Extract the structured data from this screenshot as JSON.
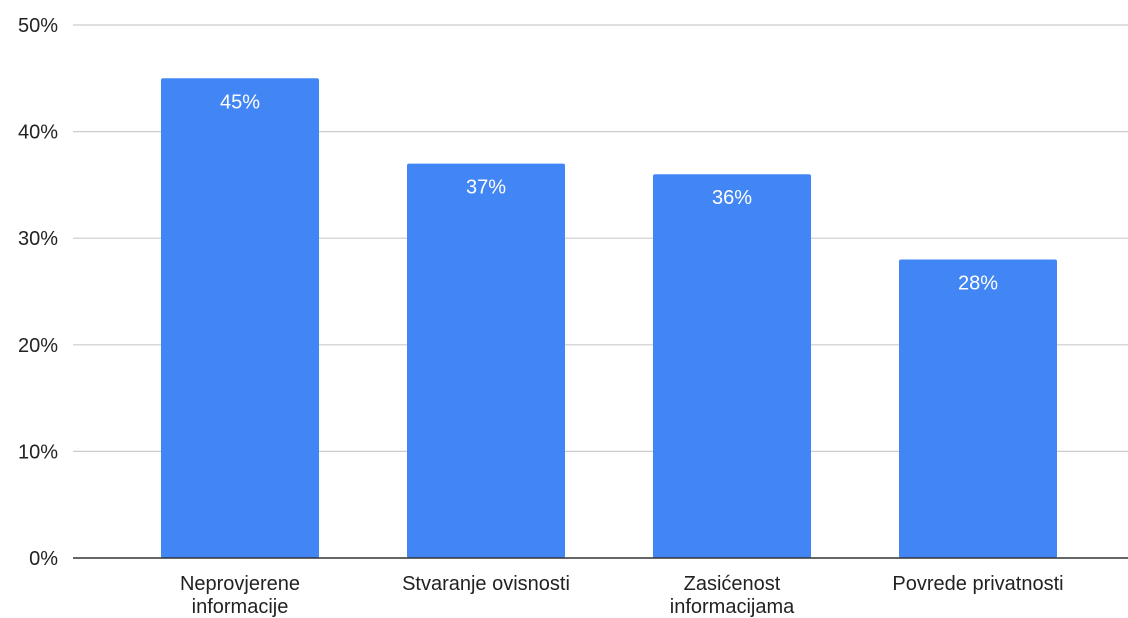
{
  "chart_data": {
    "type": "bar",
    "categories": [
      [
        "Neprovjerene",
        "informacije"
      ],
      [
        "Stvaranje ovisnosti"
      ],
      [
        "Zasićenost",
        "informacijama"
      ],
      [
        "Povrede privatnosti"
      ]
    ],
    "values": [
      45,
      37,
      36,
      28
    ],
    "data_labels": [
      "45%",
      "37%",
      "36%",
      "28%"
    ],
    "title": "",
    "xlabel": "",
    "ylabel": "",
    "ylim": [
      0,
      50
    ],
    "yticks": [
      0,
      10,
      20,
      30,
      40,
      50
    ],
    "ytick_labels": [
      "0%",
      "10%",
      "20%",
      "30%",
      "40%",
      "50%"
    ],
    "grid": true,
    "legend": "none",
    "bar_color": "#4285f4"
  }
}
